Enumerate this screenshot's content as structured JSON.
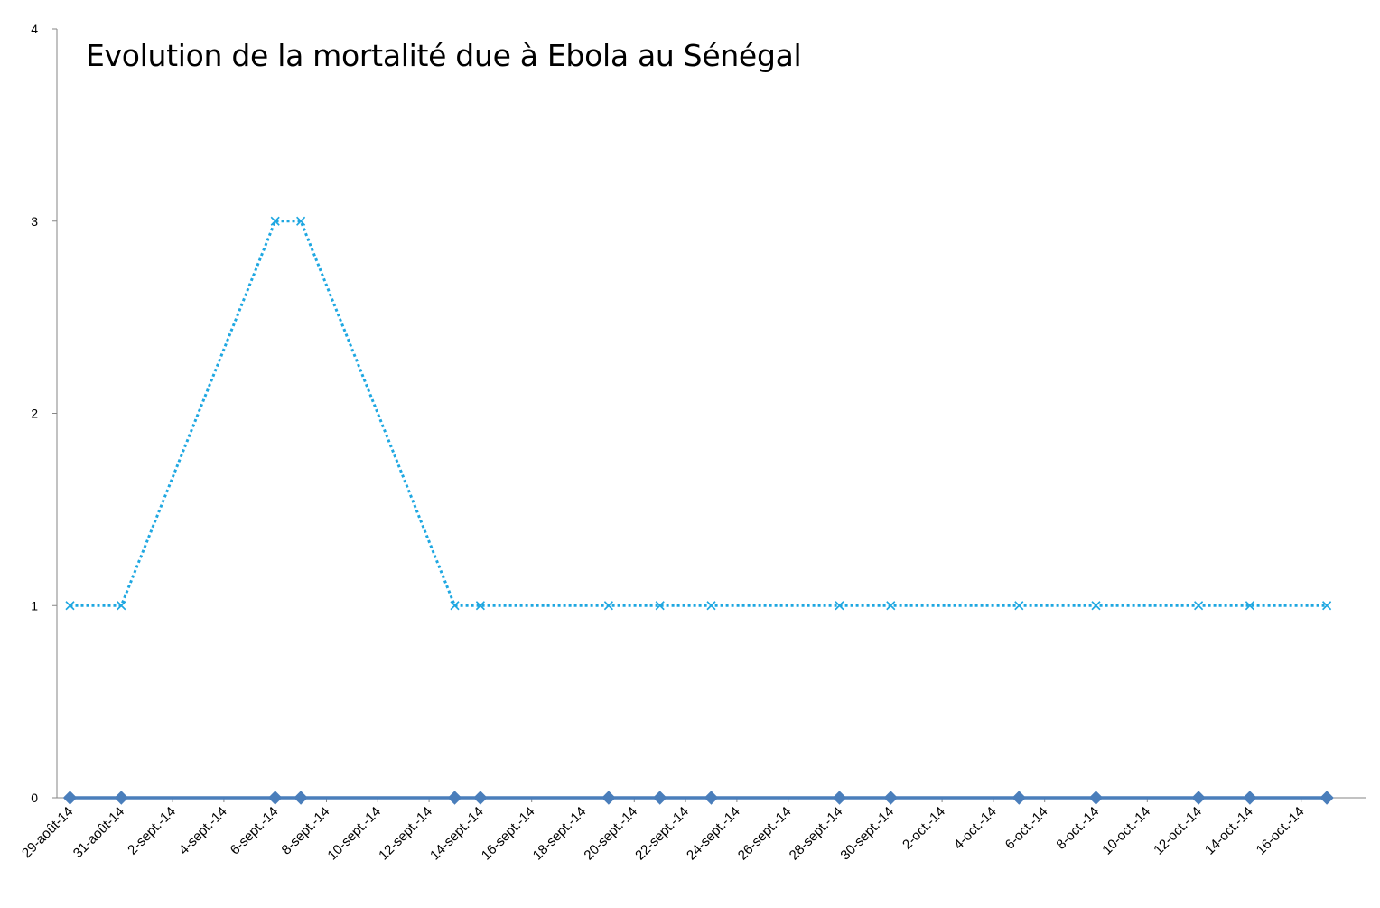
{
  "chart_data": {
    "type": "line",
    "title": "Evolution de la mortalité due à Ebola au Sénégal",
    "xlabel": "",
    "ylabel": "",
    "ylim": [
      0,
      4
    ],
    "y_ticks": [
      "0",
      "1",
      "2",
      "3",
      "4"
    ],
    "x_range": [
      "2014-08-29",
      "2014-10-18"
    ],
    "x_tick_dates": [
      "2014-08-29",
      "2014-08-31",
      "2014-09-02",
      "2014-09-04",
      "2014-09-06",
      "2014-09-08",
      "2014-09-10",
      "2014-09-12",
      "2014-09-14",
      "2014-09-16",
      "2014-09-18",
      "2014-09-20",
      "2014-09-22",
      "2014-09-24",
      "2014-09-26",
      "2014-09-28",
      "2014-09-30",
      "2014-10-02",
      "2014-10-04",
      "2014-10-06",
      "2014-10-08",
      "2014-10-10",
      "2014-10-12",
      "2014-10-14",
      "2014-10-16"
    ],
    "x_tick_labels": [
      "29-août-14",
      "31-août-14",
      "2-sept.-14",
      "4-sept.-14",
      "6-sept.-14",
      "8-sept.-14",
      "10-sept.-14",
      "12-sept.-14",
      "14-sept.-14",
      "16-sept.-14",
      "18-sept.-14",
      "20-sept.-14",
      "22-sept.-14",
      "24-sept.-14",
      "26-sept.-14",
      "28-sept.-14",
      "30-sept.-14",
      "2-oct.-14",
      "4-oct.-14",
      "6-oct.-14",
      "8-oct.-14",
      "10-oct.-14",
      "12-oct.-14",
      "14-oct.-14",
      "16-oct.-14"
    ],
    "x": [
      "2014-08-29",
      "2014-08-31",
      "2014-09-06",
      "2014-09-07",
      "2014-09-13",
      "2014-09-14",
      "2014-09-19",
      "2014-09-21",
      "2014-09-23",
      "2014-09-28",
      "2014-09-30",
      "2014-10-05",
      "2014-10-08",
      "2014-10-12",
      "2014-10-14",
      "2014-10-17"
    ],
    "series": [
      {
        "values": [
          0,
          0,
          0,
          0,
          0,
          0,
          0,
          0,
          0,
          0,
          0,
          0,
          0,
          0,
          0,
          0
        ],
        "color": "#4a7ebb",
        "marker": "diamond",
        "line_style": "solid"
      },
      {
        "values": [
          1,
          1,
          3,
          3,
          1,
          1,
          1,
          1,
          1,
          1,
          1,
          1,
          1,
          1,
          1,
          1
        ],
        "color": "#1ea7e1",
        "marker": "x",
        "line_style": "dotted"
      }
    ],
    "grid": false,
    "legend": "none"
  }
}
